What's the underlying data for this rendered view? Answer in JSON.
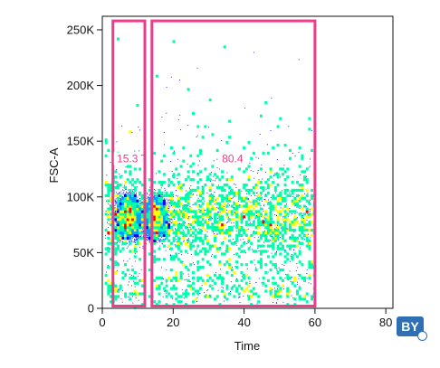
{
  "chart_data": {
    "type": "scatter",
    "plot_style": "pseudocolor density dot plot",
    "xlabel": "Time",
    "ylabel": "FSC-A",
    "xlim": [
      0,
      82
    ],
    "ylim": [
      0,
      262144
    ],
    "x_ticks": [
      {
        "value": 0,
        "label": "0"
      },
      {
        "value": 20,
        "label": "20"
      },
      {
        "value": 40,
        "label": "40"
      },
      {
        "value": 60,
        "label": "60"
      },
      {
        "value": 80,
        "label": "80"
      }
    ],
    "y_ticks": [
      {
        "value": 0,
        "label": "0"
      },
      {
        "value": 50000,
        "label": "50K"
      },
      {
        "value": 100000,
        "label": "100K"
      },
      {
        "value": 150000,
        "label": "150K"
      },
      {
        "value": 200000,
        "label": "200K"
      },
      {
        "value": 250000,
        "label": "250K"
      }
    ],
    "density": {
      "x_range": [
        1,
        60
      ],
      "core_y": 82000,
      "density_colors_low_to_high": [
        "#0000ff",
        "#00a0ff",
        "#00ffaa",
        "#ffff00",
        "#ff0000"
      ],
      "hotspots": [
        {
          "x": 7.5,
          "y": 82000
        },
        {
          "x": 15,
          "y": 82000
        }
      ]
    },
    "gates": [
      {
        "name": "gate-1",
        "x": [
          3,
          12
        ],
        "y": [
          2000,
          258000
        ],
        "percent_label": "15.3",
        "color": "#e83e8c"
      },
      {
        "name": "gate-2",
        "x": [
          14,
          60
        ],
        "y": [
          2000,
          258000
        ],
        "percent_label": "80.4",
        "color": "#e83e8c"
      }
    ],
    "grid": false,
    "legend": "none"
  },
  "badge": {
    "text": "BY"
  }
}
